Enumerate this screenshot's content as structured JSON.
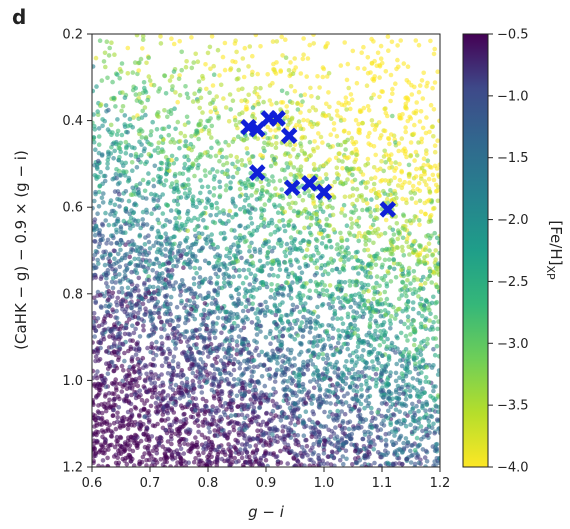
{
  "panel_label": "d",
  "chart_data": {
    "type": "scatter",
    "xlabel": "g − i",
    "ylabel": "(CaHK − g) − 0.9 × (g − i)",
    "xlim": [
      0.6,
      1.2
    ],
    "ylim": [
      1.2,
      0.2
    ],
    "y_inverted": true,
    "x_ticks": [
      "0.6",
      "0.7",
      "0.8",
      "0.9",
      "1.0",
      "1.1",
      "1.2"
    ],
    "y_ticks": [
      "0.2",
      "0.4",
      "0.6",
      "0.8",
      "1.0",
      "1.2"
    ],
    "grid": false,
    "colorbar": {
      "label": "[Fe/H]",
      "label_subscript": "XP",
      "colormap": "viridis",
      "range": [
        -4.0,
        -0.5
      ],
      "ticks": [
        "−0.5",
        "−1.0",
        "−1.5",
        "−2.0",
        "−2.5",
        "−3.0",
        "−3.5",
        "−4.0"
      ]
    },
    "background_points": {
      "description_n": 6000,
      "color_trend": "[Fe/H] decreases (toward yellow) with smaller y and larger x",
      "alpha": 0.6
    },
    "highlighted_series": {
      "marker": "X",
      "color": "#1020d8",
      "points": [
        {
          "x": 0.87,
          "y": 0.415
        },
        {
          "x": 0.885,
          "y": 0.42
        },
        {
          "x": 0.905,
          "y": 0.395
        },
        {
          "x": 0.92,
          "y": 0.395
        },
        {
          "x": 0.94,
          "y": 0.435
        },
        {
          "x": 0.885,
          "y": 0.52
        },
        {
          "x": 0.945,
          "y": 0.555
        },
        {
          "x": 0.975,
          "y": 0.545
        },
        {
          "x": 1.0,
          "y": 0.565
        },
        {
          "x": 1.11,
          "y": 0.605
        }
      ]
    }
  }
}
